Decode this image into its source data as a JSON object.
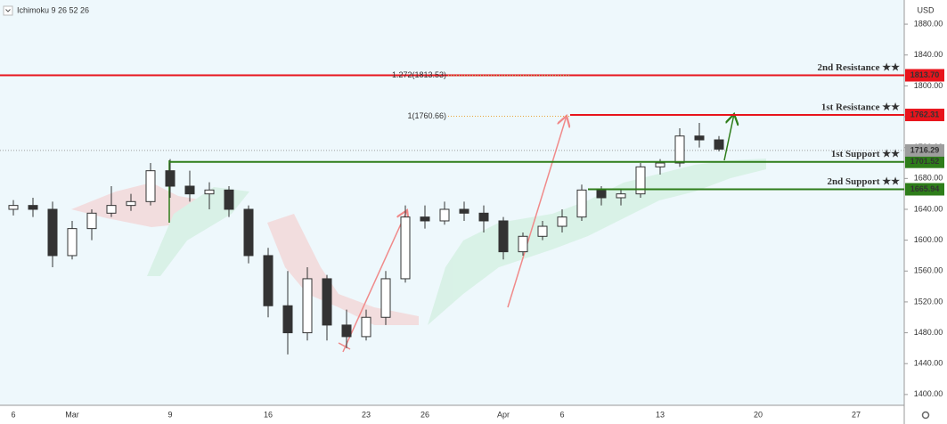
{
  "chart_data": {
    "type": "candlestick",
    "indicator": "Ichimoku 9 26 52 26",
    "unit": "USD",
    "categories": [
      "6",
      null,
      null,
      "Mar",
      null,
      null,
      null,
      null,
      "9",
      null,
      null,
      null,
      null,
      "16",
      null,
      null,
      null,
      null,
      "23",
      null,
      null,
      "26",
      null,
      null,
      null,
      "Apr",
      null,
      null,
      "6",
      null,
      null,
      null,
      null,
      "13",
      null,
      null,
      null,
      null,
      "20",
      null,
      null,
      null,
      null,
      "27",
      null,
      null
    ],
    "series": [
      {
        "up_color": "#ffffff",
        "down_color": "#333333",
        "wick_color": "#333333",
        "values": [
          [
            1640,
            1652,
            1632,
            1645
          ],
          [
            1645,
            1655,
            1630,
            1640
          ],
          [
            1640,
            1650,
            1565,
            1580
          ],
          [
            1580,
            1625,
            1575,
            1615
          ],
          [
            1615,
            1640,
            1600,
            1635
          ],
          [
            1635,
            1670,
            1630,
            1645
          ],
          [
            1645,
            1660,
            1638,
            1650
          ],
          [
            1650,
            1700,
            1645,
            1690
          ],
          [
            1690,
            1705,
            1655,
            1670
          ],
          [
            1670,
            1690,
            1650,
            1660
          ],
          [
            1660,
            1675,
            1640,
            1665
          ],
          [
            1665,
            1670,
            1630,
            1640
          ],
          [
            1640,
            1645,
            1570,
            1580
          ],
          [
            1580,
            1590,
            1500,
            1515
          ],
          [
            1515,
            1560,
            1452,
            1480
          ],
          [
            1480,
            1565,
            1470,
            1550
          ],
          [
            1550,
            1555,
            1470,
            1490
          ],
          [
            1490,
            1510,
            1460,
            1475
          ],
          [
            1475,
            1510,
            1470,
            1500
          ],
          [
            1500,
            1560,
            1490,
            1550
          ],
          [
            1550,
            1645,
            1545,
            1630
          ],
          [
            1630,
            1645,
            1615,
            1625
          ],
          [
            1625,
            1650,
            1620,
            1640
          ],
          [
            1640,
            1650,
            1625,
            1635
          ],
          [
            1635,
            1645,
            1610,
            1625
          ],
          [
            1625,
            1630,
            1575,
            1585
          ],
          [
            1585,
            1610,
            1580,
            1605
          ],
          [
            1605,
            1625,
            1600,
            1618
          ],
          [
            1618,
            1640,
            1610,
            1630
          ],
          [
            1630,
            1672,
            1625,
            1665
          ],
          [
            1665,
            1670,
            1645,
            1655
          ],
          [
            1655,
            1665,
            1645,
            1660
          ],
          [
            1660,
            1700,
            1655,
            1695
          ],
          [
            1695,
            1705,
            1685,
            1700
          ],
          [
            1700,
            1745,
            1695,
            1735
          ],
          [
            1735,
            1752,
            1720,
            1730
          ],
          [
            1730,
            1735,
            1715,
            1718
          ],
          null,
          null,
          null,
          null,
          null,
          null,
          null,
          null,
          null
        ]
      }
    ],
    "levels": [
      {
        "name": "2nd Resistance ★★",
        "value": 1813.7,
        "value_label": "1813.70",
        "color": "#e8141c"
      },
      {
        "name": "1st Resistance ★★",
        "value": 1762.31,
        "value_label": "1762.31",
        "color": "#e8141c"
      },
      {
        "name": "1st Support ★★",
        "value": 1701.52,
        "value_label": "1701.52",
        "color": "#2e7d1a"
      },
      {
        "name": "2nd Support ★★",
        "value": 1665.94,
        "value_label": "1665.94",
        "color": "#2e7d1a"
      }
    ],
    "fib_levels": [
      {
        "label": "1.272(1813.53)",
        "value": 1813.53,
        "color": "#9ccc65"
      },
      {
        "label": "1(1760.66)",
        "value": 1760.66,
        "color": "#e8a23c"
      }
    ],
    "last_price": {
      "value": 1716.29,
      "label": "1716.29",
      "color": "#9e9e9e"
    },
    "ylim": [
      1386,
      1905.5
    ],
    "yticks": [
      {
        "value": 1400,
        "label": "1400.00"
      },
      {
        "value": 1440,
        "label": "1440.00"
      },
      {
        "value": 1480,
        "label": "1480.00"
      },
      {
        "value": 1520,
        "label": "1520.00"
      },
      {
        "value": 1560,
        "label": "1560.00"
      },
      {
        "value": 1600,
        "label": "1600.00"
      },
      {
        "value": 1640,
        "label": "1640.00"
      },
      {
        "value": 1680,
        "label": "1680.00"
      },
      {
        "value": 1720,
        "label": "1720.00"
      },
      {
        "value": 1760,
        "label": "1760.00"
      },
      {
        "value": 1800,
        "label": "1800.00"
      },
      {
        "value": 1840,
        "label": "1840.00"
      },
      {
        "value": 1880,
        "label": "1880.00"
      }
    ]
  }
}
